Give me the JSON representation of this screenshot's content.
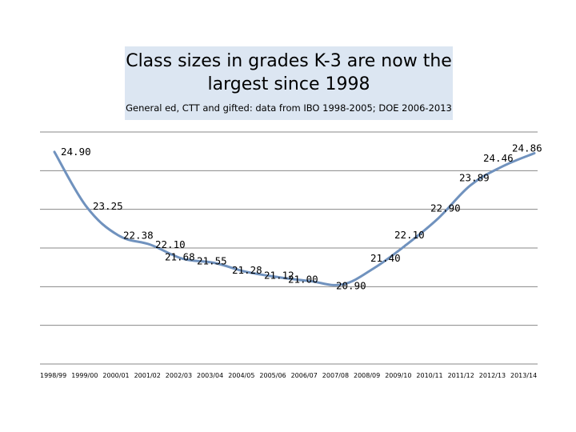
{
  "chart_data": {
    "type": "line",
    "title": "Class sizes in grades K-3 are now the largest since 1998",
    "subtitle": "General ed, CTT and gifted: data from IBO 1998-2005; DOE 2006-2013",
    "categories": [
      "1998/99",
      "1999/00",
      "2000/01",
      "2001/02",
      "2002/03",
      "2003/04",
      "2004/05",
      "2005/06",
      "2006/07",
      "2007/08",
      "2008/09",
      "2009/10",
      "2010/11",
      "2011/12",
      "2012/13",
      "2013/14"
    ],
    "series": [
      {
        "values": [
          24.9,
          23.25,
          22.38,
          22.1,
          21.68,
          21.55,
          21.28,
          21.12,
          21.0,
          20.9,
          21.4,
          22.1,
          22.9,
          23.89,
          24.46,
          24.86
        ],
        "labels": [
          "24.90",
          "23.25",
          "22.38",
          "22.10",
          "21.68",
          "21.55",
          "21.28",
          "21.12",
          "21.00",
          "20.90",
          "21.40",
          "22.10",
          "22.90",
          "23.89",
          "24.46",
          "24.86"
        ],
        "color": "#7092be"
      }
    ],
    "ylim": [
      18.5,
      25.5
    ],
    "grid": true,
    "legend": "none"
  }
}
